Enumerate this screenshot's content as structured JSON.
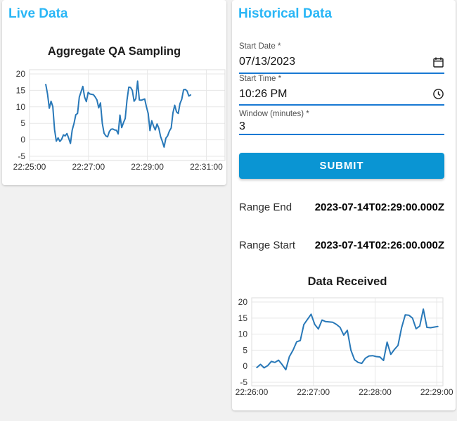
{
  "left_panel": {
    "title": "Live Data"
  },
  "right_panel": {
    "title": "Historical Data",
    "form": {
      "start_date": {
        "label": "Start Date *",
        "value": "07/13/2023",
        "icon": "calendar-icon"
      },
      "start_time": {
        "label": "Start Time *",
        "value": "10:26 PM",
        "icon": "clock-icon"
      },
      "window": {
        "label": "Window (minutes) *",
        "value": "3"
      },
      "submit_label": "SUBMIT"
    },
    "results": {
      "range_end_label": "Range End",
      "range_end_value": "2023-07-14T02:29:00.000Z",
      "range_start_label": "Range Start",
      "range_start_value": "2023-07-14T02:26:00.000Z"
    }
  },
  "colors": {
    "accent": "#29b6f6",
    "button": "#0a95d3",
    "input_underline": "#1879d3",
    "chart_line": "#2878b8",
    "grid": "#e7e7e7",
    "plot_border": "#dcdcdc"
  },
  "chart_data": [
    {
      "id": "live",
      "type": "line",
      "title": "Aggregate QA Sampling",
      "xlabel": "",
      "ylabel": "",
      "grid": true,
      "legend": "none",
      "x_tick_labels": [
        "22:25:00",
        "22:27:00",
        "22:29:00",
        "22:31:00"
      ],
      "x_tick_seconds": [
        0,
        120,
        240,
        360
      ],
      "xlim_seconds": [
        0,
        398
      ],
      "y_ticks": [
        -5,
        0,
        5,
        10,
        15,
        20
      ],
      "ylim": [
        -6.28,
        21.28
      ],
      "line_color": "#2878b8",
      "t_start": 33,
      "t_end": 328,
      "values": [
        16.8,
        13.9,
        9.6,
        11.7,
        10.1,
        3.1,
        -0.4,
        0.6,
        -0.5,
        0.2,
        1.5,
        1.2,
        1.9,
        0.5,
        -1.1,
        3.0,
        5.0,
        7.6,
        8.0,
        13.0,
        14.6,
        16.2,
        13.0,
        11.6,
        14.4,
        13.9,
        13.8,
        13.7,
        13.0,
        12.1,
        9.7,
        11.2,
        5.0,
        2.0,
        1.2,
        0.9,
        2.5,
        3.2,
        3.3,
        3.0,
        2.9,
        1.8,
        7.5,
        3.7,
        5.2,
        6.5,
        12.0,
        16.0,
        15.9,
        15.0,
        11.7,
        12.5,
        17.8,
        12.1,
        12.0,
        12.2,
        12.4,
        10.0,
        8.0,
        2.8,
        5.8,
        4.2,
        3.0,
        4.8,
        3.5,
        1.0,
        -0.5,
        -2.2,
        0.5,
        1.2,
        2.7,
        3.6,
        8.2,
        10.5,
        8.5,
        8.0,
        11.0,
        12.3,
        15.2,
        15.3,
        14.8,
        13.3,
        13.6
      ]
    },
    {
      "id": "received",
      "type": "line",
      "title": "Data Received",
      "xlabel": "",
      "ylabel": "",
      "grid": true,
      "legend": "none",
      "x_tick_labels": [
        "22:26:00",
        "22:27:00",
        "22:28:00",
        "22:29:00"
      ],
      "x_tick_seconds": [
        0,
        60,
        120,
        180
      ],
      "xlim_seconds": [
        0,
        186
      ],
      "y_ticks": [
        -5,
        0,
        5,
        10,
        15,
        20
      ],
      "ylim": [
        -6.09,
        21.32
      ],
      "line_color": "#2878b8",
      "t_start": 5,
      "t_end": 181,
      "values": [
        -0.4,
        0.6,
        -0.5,
        0.2,
        1.5,
        1.2,
        1.9,
        0.5,
        -1.1,
        3.0,
        5.0,
        7.6,
        8.0,
        13.0,
        14.6,
        16.2,
        13.0,
        11.6,
        14.4,
        13.9,
        13.8,
        13.7,
        13.0,
        12.1,
        9.7,
        11.2,
        5.0,
        2.0,
        1.2,
        0.9,
        2.5,
        3.2,
        3.3,
        3.0,
        2.9,
        1.8,
        7.5,
        3.7,
        5.2,
        6.5,
        12.0,
        16.0,
        15.9,
        15.0,
        11.7,
        12.5,
        17.8,
        12.1,
        12.0,
        12.2,
        12.4
      ]
    }
  ]
}
